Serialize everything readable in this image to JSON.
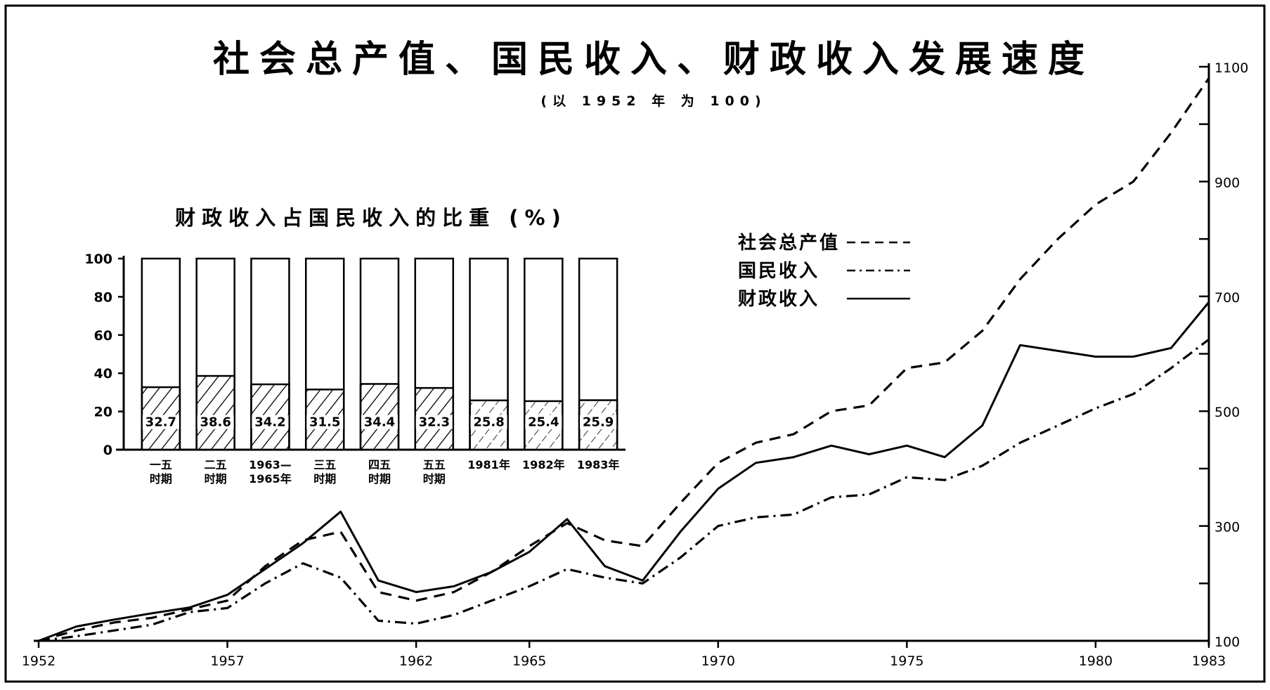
{
  "chart_data": [
    {
      "type": "line",
      "title": "社会总产值、国民收入、财政收入发展速度",
      "subtitle": "(以 1952 年 为 100)",
      "x_ticks": [
        "1952",
        "1957",
        "1962",
        "1965",
        "1970",
        "1975",
        "1980",
        "1983"
      ],
      "y_ticks": [
        "100",
        "300",
        "500",
        "700",
        "900",
        "1100"
      ],
      "ylim": [
        100,
        1100
      ],
      "xlim": [
        1952,
        1983
      ],
      "legend_position": "top-right",
      "x": [
        1952,
        1953,
        1954,
        1955,
        1956,
        1957,
        1958,
        1959,
        1960,
        1961,
        1962,
        1963,
        1964,
        1965,
        1966,
        1967,
        1968,
        1969,
        1970,
        1971,
        1972,
        1973,
        1974,
        1975,
        1976,
        1977,
        1978,
        1979,
        1980,
        1981,
        1982,
        1983
      ],
      "series": [
        {
          "name": "社会总产值",
          "style": "dashed",
          "values": [
            100,
            118,
            132,
            140,
            155,
            170,
            230,
            275,
            290,
            185,
            170,
            185,
            220,
            265,
            305,
            275,
            265,
            340,
            410,
            445,
            460,
            500,
            510,
            575,
            585,
            640,
            730,
            800,
            860,
            900,
            985,
            1080
          ]
        },
        {
          "name": "国民收入",
          "style": "dashdot",
          "values": [
            100,
            108,
            118,
            128,
            150,
            157,
            200,
            235,
            210,
            135,
            130,
            145,
            170,
            195,
            225,
            210,
            200,
            245,
            300,
            315,
            320,
            350,
            355,
            385,
            380,
            405,
            445,
            475,
            505,
            530,
            575,
            625
          ]
        },
        {
          "name": "财政收入",
          "style": "solid",
          "values": [
            100,
            125,
            137,
            148,
            158,
            180,
            225,
            270,
            325,
            205,
            185,
            195,
            220,
            255,
            312,
            230,
            205,
            290,
            365,
            410,
            420,
            440,
            425,
            440,
            420,
            475,
            615,
            605,
            595,
            595,
            610,
            690
          ]
        }
      ]
    },
    {
      "type": "bar",
      "title": "财政收入占国民收入的比重 (%)",
      "categories": [
        "一五\n时期",
        "二五\n时期",
        "1963—\n1965年",
        "三五\n时期",
        "四五\n时期",
        "五五\n时期",
        "1981年",
        "1982年",
        "1983年"
      ],
      "values": [
        32.7,
        38.6,
        34.2,
        31.5,
        34.4,
        32.3,
        25.8,
        25.4,
        25.9
      ],
      "value_labels": [
        "32.7",
        "38.6",
        "34.2",
        "31.5",
        "34.4",
        "32.3",
        "25.8",
        "25.4",
        "25.9"
      ],
      "y_ticks": [
        "0",
        "20",
        "40",
        "60",
        "80",
        "100"
      ],
      "ylim": [
        0,
        100
      ]
    }
  ]
}
